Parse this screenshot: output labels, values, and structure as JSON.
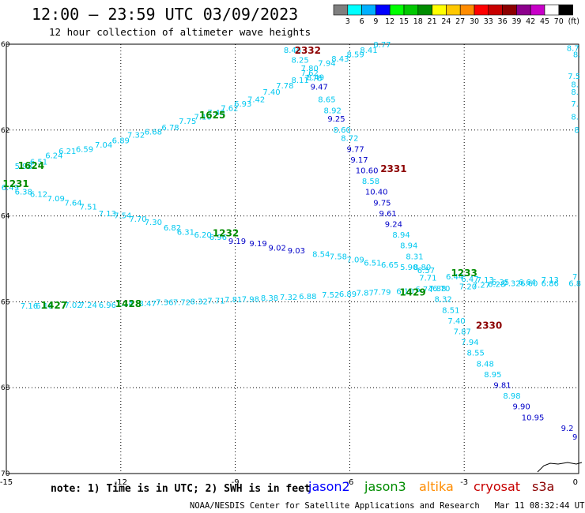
{
  "header": {
    "title": "12:00 – 23:59 UTC 03/09/2023",
    "subtitle": "12 hour collection of altimeter wave heights"
  },
  "legend": {
    "unit": "(ft)",
    "bins": [
      {
        "label": "3",
        "color": "#7f7f7f"
      },
      {
        "label": "6",
        "color": "#00ffff"
      },
      {
        "label": "9",
        "color": "#00b0ff"
      },
      {
        "label": "12",
        "color": "#0000ff"
      },
      {
        "label": "15",
        "color": "#00ff00"
      },
      {
        "label": "18",
        "color": "#00c800"
      },
      {
        "label": "21",
        "color": "#008c00"
      },
      {
        "label": "24",
        "color": "#ffff00"
      },
      {
        "label": "27",
        "color": "#ffc800"
      },
      {
        "label": "30",
        "color": "#ff8c00"
      },
      {
        "label": "33",
        "color": "#ff0000"
      },
      {
        "label": "36",
        "color": "#c80000"
      },
      {
        "label": "39",
        "color": "#8c0000"
      },
      {
        "label": "42",
        "color": "#8c008c"
      },
      {
        "label": "45",
        "color": "#c800c8"
      },
      {
        "label": "70",
        "color": "#ffffff"
      },
      {
        "label": "",
        "color": "#000000"
      }
    ]
  },
  "map": {
    "x_ticks": [
      "-15",
      "-12",
      "-9",
      "-6",
      "-3",
      "0"
    ],
    "y_ticks": [
      "-60",
      "-62",
      "-64",
      "-66",
      "-68",
      "-70"
    ],
    "colors": {
      "light": "#00c8f0",
      "dark": "#0000c8",
      "time_green": "#008c00",
      "time_red": "#8c0000"
    }
  },
  "tracks": [
    {
      "name": "track-1625",
      "points": [
        {
          "t": "5.98",
          "lon": -14.55,
          "lat": -62.85,
          "c": "light"
        },
        {
          "t": "6.51",
          "lon": -14.15,
          "lat": -62.75,
          "c": "light"
        },
        {
          "t": "6.24",
          "lon": -13.75,
          "lat": -62.6,
          "c": "light"
        },
        {
          "t": "6.21",
          "lon": -13.4,
          "lat": -62.5,
          "c": "light"
        },
        {
          "t": "6.59",
          "lon": -12.95,
          "lat": -62.45,
          "c": "light"
        },
        {
          "t": "7.04",
          "lon": -12.45,
          "lat": -62.35,
          "c": "light"
        },
        {
          "t": "6.89",
          "lon": -12.0,
          "lat": -62.25,
          "c": "light"
        },
        {
          "t": "7.32",
          "lon": -11.6,
          "lat": -62.12,
          "c": "light"
        },
        {
          "t": "6.68",
          "lon": -11.15,
          "lat": -62.05,
          "c": "light"
        },
        {
          "t": "6.78",
          "lon": -10.7,
          "lat": -61.95,
          "c": "light"
        },
        {
          "t": "7.75",
          "lon": -10.25,
          "lat": -61.8,
          "c": "light"
        },
        {
          "t": "7.10",
          "lon": -9.85,
          "lat": -61.7,
          "c": "light"
        },
        {
          "t": "7.40",
          "lon": -9.5,
          "lat": -61.6,
          "c": "light"
        },
        {
          "t": "7.62",
          "lon": -9.15,
          "lat": -61.5,
          "c": "light"
        },
        {
          "t": "6.93",
          "lon": -8.8,
          "lat": -61.4,
          "c": "light"
        },
        {
          "t": "7.42",
          "lon": -8.45,
          "lat": -61.3,
          "c": "light"
        },
        {
          "t": "7.40",
          "lon": -8.05,
          "lat": -61.12,
          "c": "light"
        },
        {
          "t": "7.78",
          "lon": -7.7,
          "lat": -60.97,
          "c": "light"
        },
        {
          "t": "8.11",
          "lon": -7.3,
          "lat": -60.85,
          "c": "light"
        },
        {
          "t": "7.78",
          "lon": -6.95,
          "lat": -60.8,
          "c": "light"
        },
        {
          "t": "7.62",
          "lon": -7.05,
          "lat": -60.68,
          "c": "light"
        },
        {
          "t": "7.94",
          "lon": -6.6,
          "lat": -60.45,
          "c": "light"
        },
        {
          "t": "8.43",
          "lon": -6.25,
          "lat": -60.35,
          "c": "light"
        },
        {
          "t": "8.59",
          "lon": -5.85,
          "lat": -60.25,
          "c": "light"
        },
        {
          "t": "8.41",
          "lon": -5.5,
          "lat": -60.15,
          "c": "light"
        },
        {
          "t": "8.77",
          "lon": -5.15,
          "lat": -60.02,
          "c": "light"
        }
      ]
    },
    {
      "name": "track-2332",
      "points": [
        {
          "t": "8.46",
          "lon": -7.5,
          "lat": -60.15,
          "c": "light"
        },
        {
          "t": "8.25",
          "lon": -7.3,
          "lat": -60.38,
          "c": "light"
        },
        {
          "t": "7.80",
          "lon": -7.05,
          "lat": -60.57,
          "c": "light"
        },
        {
          "t": "8.49",
          "lon": -6.9,
          "lat": -60.78,
          "c": "light"
        },
        {
          "t": "9.47",
          "lon": -6.8,
          "lat": -61.0,
          "c": "dark"
        },
        {
          "t": "8.65",
          "lon": -6.6,
          "lat": -61.3,
          "c": "light"
        },
        {
          "t": "8.92",
          "lon": -6.45,
          "lat": -61.55,
          "c": "light"
        },
        {
          "t": "9.25",
          "lon": -6.35,
          "lat": -61.75,
          "c": "dark"
        },
        {
          "t": "8.60",
          "lon": -6.2,
          "lat": -62.0,
          "c": "light"
        },
        {
          "t": "8.72",
          "lon": -6.0,
          "lat": -62.2,
          "c": "light"
        },
        {
          "t": "9.77",
          "lon": -5.85,
          "lat": -62.45,
          "c": "dark"
        },
        {
          "t": "9.17",
          "lon": -5.75,
          "lat": -62.7,
          "c": "dark"
        },
        {
          "t": "10.60",
          "lon": -5.55,
          "lat": -62.95,
          "c": "dark"
        },
        {
          "t": "8.58",
          "lon": -5.45,
          "lat": -63.2,
          "c": "light"
        },
        {
          "t": "10.40",
          "lon": -5.3,
          "lat": -63.45,
          "c": "dark"
        },
        {
          "t": "9.75",
          "lon": -5.15,
          "lat": -63.7,
          "c": "dark"
        },
        {
          "t": "9.61",
          "lon": -5.0,
          "lat": -63.95,
          "c": "dark"
        },
        {
          "t": "9.24",
          "lon": -4.85,
          "lat": -64.2,
          "c": "dark"
        },
        {
          "t": "8.94",
          "lon": -4.65,
          "lat": -64.45,
          "c": "light"
        },
        {
          "t": "8.94",
          "lon": -4.45,
          "lat": -64.7,
          "c": "light"
        },
        {
          "t": "8.31",
          "lon": -4.3,
          "lat": -64.95,
          "c": "light"
        },
        {
          "t": "8.80",
          "lon": -4.1,
          "lat": -65.2,
          "c": "light"
        },
        {
          "t": "7.71",
          "lon": -3.95,
          "lat": -65.45,
          "c": "light"
        },
        {
          "t": "7.88",
          "lon": -3.7,
          "lat": -65.7,
          "c": "light"
        },
        {
          "t": "8.32",
          "lon": -3.55,
          "lat": -65.95,
          "c": "light"
        },
        {
          "t": "8.51",
          "lon": -3.35,
          "lat": -66.2,
          "c": "light"
        },
        {
          "t": "7.40",
          "lon": -3.2,
          "lat": -66.45,
          "c": "light"
        },
        {
          "t": "7.87",
          "lon": -3.05,
          "lat": -66.7,
          "c": "light"
        },
        {
          "t": "7.94",
          "lon": -2.85,
          "lat": -66.95,
          "c": "light"
        },
        {
          "t": "8.55",
          "lon": -2.7,
          "lat": -67.2,
          "c": "light"
        },
        {
          "t": "8.48",
          "lon": -2.45,
          "lat": -67.45,
          "c": "light"
        },
        {
          "t": "8.95",
          "lon": -2.25,
          "lat": -67.7,
          "c": "light"
        },
        {
          "t": "9.81",
          "lon": -2.0,
          "lat": -67.95,
          "c": "dark"
        },
        {
          "t": "8.98",
          "lon": -1.75,
          "lat": -68.2,
          "c": "light"
        },
        {
          "t": "9.90",
          "lon": -1.5,
          "lat": -68.45,
          "c": "dark"
        },
        {
          "t": "10.95",
          "lon": -1.2,
          "lat": -68.7,
          "c": "dark"
        },
        {
          "t": "9.2",
          "lon": -0.3,
          "lat": -68.95,
          "c": "dark"
        },
        {
          "t": "9",
          "lon": -0.1,
          "lat": -69.15,
          "c": "dark"
        }
      ]
    },
    {
      "name": "track-1231",
      "points": [
        {
          "t": "6.49",
          "lon": -14.9,
          "lat": -63.35,
          "c": "light"
        },
        {
          "t": "6.38",
          "lon": -14.55,
          "lat": -63.45,
          "c": "light"
        },
        {
          "t": "6.12",
          "lon": -14.15,
          "lat": -63.5,
          "c": "light"
        },
        {
          "t": "7.09",
          "lon": -13.7,
          "lat": -63.6,
          "c": "light"
        },
        {
          "t": "7.64",
          "lon": -13.25,
          "lat": -63.7,
          "c": "light"
        },
        {
          "t": "7.51",
          "lon": -12.85,
          "lat": -63.8,
          "c": "light"
        },
        {
          "t": "7.13",
          "lon": -12.35,
          "lat": -63.95,
          "c": "light"
        },
        {
          "t": "7.54",
          "lon": -11.95,
          "lat": -64.0,
          "c": "light"
        },
        {
          "t": "7.70",
          "lon": -11.55,
          "lat": -64.08,
          "c": "light"
        },
        {
          "t": "7.30",
          "lon": -11.15,
          "lat": -64.15,
          "c": "light"
        },
        {
          "t": "6.82",
          "lon": -10.65,
          "lat": -64.28,
          "c": "light"
        },
        {
          "t": "6.31",
          "lon": -10.3,
          "lat": -64.38,
          "c": "light"
        },
        {
          "t": "6.20",
          "lon": -9.85,
          "lat": -64.45,
          "c": "light"
        },
        {
          "t": "6.96",
          "lon": -9.45,
          "lat": -64.5,
          "c": "light"
        },
        {
          "t": "9.19",
          "lon": -8.95,
          "lat": -64.6,
          "c": "dark"
        },
        {
          "t": "9.19",
          "lon": -8.4,
          "lat": -64.65,
          "c": "dark"
        },
        {
          "t": "9.02",
          "lon": -7.9,
          "lat": -64.75,
          "c": "dark"
        },
        {
          "t": "9.03",
          "lon": -7.4,
          "lat": -64.82,
          "c": "dark"
        },
        {
          "t": "8.54",
          "lon": -6.75,
          "lat": -64.9,
          "c": "light"
        },
        {
          "t": "7.58",
          "lon": -6.3,
          "lat": -64.95,
          "c": "light"
        },
        {
          "t": "7.09",
          "lon": -5.85,
          "lat": -65.03,
          "c": "light"
        },
        {
          "t": "6.51",
          "lon": -5.4,
          "lat": -65.1,
          "c": "light"
        },
        {
          "t": "6.65",
          "lon": -4.95,
          "lat": -65.15,
          "c": "light"
        },
        {
          "t": "5.90",
          "lon": -4.45,
          "lat": -65.2,
          "c": "light"
        },
        {
          "t": "6.57",
          "lon": -4.0,
          "lat": -65.28,
          "c": "light"
        },
        {
          "t": "6.44",
          "lon": -3.25,
          "lat": -65.42,
          "c": "light"
        },
        {
          "t": "6.47",
          "lon": -2.85,
          "lat": -65.48,
          "c": "light"
        },
        {
          "t": "7.13",
          "lon": -2.45,
          "lat": -65.5,
          "c": "light"
        },
        {
          "t": "6.35",
          "lon": -2.05,
          "lat": -65.55,
          "c": "light"
        },
        {
          "t": "6.64",
          "lon": -1.35,
          "lat": -65.55,
          "c": "light"
        },
        {
          "t": "7.13",
          "lon": -0.75,
          "lat": -65.5,
          "c": "light"
        },
        {
          "t": "7",
          "lon": -0.1,
          "lat": -65.42,
          "c": "light"
        }
      ]
    },
    {
      "name": "track-1427",
      "points": [
        {
          "t": "7.16",
          "lon": -14.4,
          "lat": -66.1,
          "c": "light"
        },
        {
          "t": "6.18",
          "lon": -14.0,
          "lat": -66.1,
          "c": "light"
        },
        {
          "t": "7.02",
          "lon": -13.25,
          "lat": -66.08,
          "c": "light"
        },
        {
          "t": "7.24",
          "lon": -12.85,
          "lat": -66.08,
          "c": "light"
        },
        {
          "t": "6.96",
          "lon": -12.35,
          "lat": -66.08,
          "c": "light"
        },
        {
          "t": "7.14",
          "lon": -11.9,
          "lat": -66.05,
          "c": "light"
        },
        {
          "t": "8.47",
          "lon": -11.3,
          "lat": -66.05,
          "c": "light"
        },
        {
          "t": "7.36",
          "lon": -10.85,
          "lat": -66.02,
          "c": "light"
        },
        {
          "t": "7.72",
          "lon": -10.4,
          "lat": -66.02,
          "c": "light"
        },
        {
          "t": "8.32",
          "lon": -9.95,
          "lat": -66.0,
          "c": "light"
        },
        {
          "t": "7.71",
          "lon": -9.5,
          "lat": -65.98,
          "c": "light"
        },
        {
          "t": "7.81",
          "lon": -9.05,
          "lat": -65.96,
          "c": "light"
        },
        {
          "t": "7.98",
          "lon": -8.6,
          "lat": -65.95,
          "c": "light"
        },
        {
          "t": "8.38",
          "lon": -8.1,
          "lat": -65.92,
          "c": "light"
        },
        {
          "t": "7.32",
          "lon": -7.6,
          "lat": -65.9,
          "c": "light"
        },
        {
          "t": "6.88",
          "lon": -7.1,
          "lat": -65.88,
          "c": "light"
        },
        {
          "t": "7.52",
          "lon": -6.5,
          "lat": -65.85,
          "c": "light"
        },
        {
          "t": "6.89",
          "lon": -6.05,
          "lat": -65.83,
          "c": "light"
        },
        {
          "t": "7.87",
          "lon": -5.6,
          "lat": -65.8,
          "c": "light"
        },
        {
          "t": "7.79",
          "lon": -5.15,
          "lat": -65.78,
          "c": "light"
        },
        {
          "t": "6.10",
          "lon": -4.55,
          "lat": -65.76,
          "c": "light"
        },
        {
          "t": "6.74",
          "lon": -4.05,
          "lat": -65.72,
          "c": "light"
        },
        {
          "t": "6.70",
          "lon": -3.6,
          "lat": -65.7,
          "c": "light"
        },
        {
          "t": "7.20",
          "lon": -2.9,
          "lat": -65.65,
          "c": "light"
        },
        {
          "t": "7.27",
          "lon": -2.55,
          "lat": -65.62,
          "c": "light"
        },
        {
          "t": "6.28",
          "lon": -2.15,
          "lat": -65.6,
          "c": "light"
        },
        {
          "t": "7.32",
          "lon": -1.75,
          "lat": -65.58,
          "c": "light"
        },
        {
          "t": "6.60",
          "lon": -1.3,
          "lat": -65.58,
          "c": "light"
        },
        {
          "t": "6.86",
          "lon": -0.75,
          "lat": -65.58,
          "c": "light"
        },
        {
          "t": "6.8",
          "lon": -0.1,
          "lat": -65.58,
          "c": "light"
        }
      ]
    },
    {
      "name": "track-east-edge",
      "points": [
        {
          "t": "8.7",
          "lon": -0.15,
          "lat": -60.1,
          "c": "light"
        },
        {
          "t": "8.",
          "lon": -0.05,
          "lat": -60.25,
          "c": "light"
        },
        {
          "t": "7.5",
          "lon": -0.12,
          "lat": -60.75,
          "c": "light"
        },
        {
          "t": "8.",
          "lon": -0.1,
          "lat": -60.95,
          "c": "light"
        },
        {
          "t": "8.",
          "lon": -0.1,
          "lat": -61.12,
          "c": "light"
        },
        {
          "t": "7.",
          "lon": -0.1,
          "lat": -61.4,
          "c": "light"
        },
        {
          "t": "8.",
          "lon": -0.1,
          "lat": -61.7,
          "c": "light"
        },
        {
          "t": "8",
          "lon": -0.05,
          "lat": -62.0,
          "c": "light"
        }
      ]
    }
  ],
  "time_labels": [
    {
      "t": "1624",
      "lon": -14.35,
      "lat": -62.83,
      "c": "time_green"
    },
    {
      "t": "1231",
      "lon": -14.75,
      "lat": -63.25,
      "c": "time_green"
    },
    {
      "t": "1625",
      "lon": -9.6,
      "lat": -61.65,
      "c": "time_green"
    },
    {
      "t": "2332",
      "lon": -7.1,
      "lat": -60.15,
      "c": "time_red"
    },
    {
      "t": "2331",
      "lon": -4.85,
      "lat": -62.9,
      "c": "time_red"
    },
    {
      "t": "1232",
      "lon": -9.25,
      "lat": -64.4,
      "c": "time_green"
    },
    {
      "t": "1233",
      "lon": -3.0,
      "lat": -65.33,
      "c": "time_green"
    },
    {
      "t": "1427",
      "lon": -13.75,
      "lat": -66.08,
      "c": "time_green"
    },
    {
      "t": "1428",
      "lon": -11.8,
      "lat": -66.05,
      "c": "time_green"
    },
    {
      "t": "1429",
      "lon": -4.35,
      "lat": -65.78,
      "c": "time_green"
    },
    {
      "t": "2330",
      "lon": -2.35,
      "lat": -66.55,
      "c": "time_red"
    }
  ],
  "footer": {
    "note": "note: 1) Time is in UTC; 2) SWH is in feet",
    "satellites": [
      {
        "label": "jason2",
        "color": "#0000ff"
      },
      {
        "label": "jason3",
        "color": "#008c00"
      },
      {
        "label": "altika",
        "color": "#ff8c00"
      },
      {
        "label": "cryosat",
        "color": "#c80000"
      },
      {
        "label": "s3a",
        "color": "#8c0000"
      }
    ],
    "credit": "NOAA/NESDIS Center for Satellite Applications and Research",
    "timestamp": "Mar 11 08:32:44 UTC 2023"
  }
}
